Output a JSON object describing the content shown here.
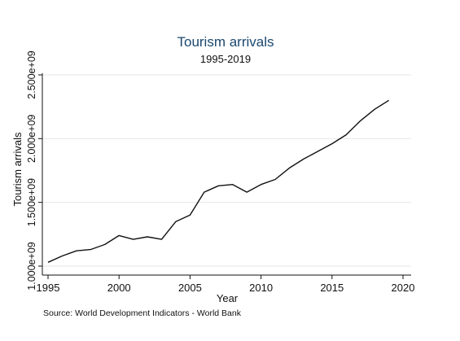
{
  "chart_data": {
    "type": "line",
    "title": "Tourism arrivals",
    "subtitle": "1995-2019",
    "xlabel": "Year",
    "ylabel": "Tourism arrivals",
    "source": "Source: World Development Indicators - World Bank",
    "xlim": [
      1995,
      2020
    ],
    "ylim": [
      1000000000,
      2500000000
    ],
    "x_ticks": [
      1995,
      2000,
      2005,
      2010,
      2015,
      2020
    ],
    "x_tick_labels": [
      "1995",
      "2000",
      "2005",
      "2010",
      "2015",
      "2020"
    ],
    "y_ticks": [
      1000000000,
      1500000000,
      2000000000,
      2500000000
    ],
    "y_tick_labels": [
      "1.000e+09",
      "1.500e+09",
      "2.000e+09",
      "2.500e+09"
    ],
    "grid": "horizontal",
    "colors": {
      "line": "#111111",
      "grid": "#e6e6e6",
      "title": "#1a476f"
    },
    "series": [
      {
        "x": [
          1995,
          1996,
          1997,
          1998,
          1999,
          2000,
          2001,
          2002,
          2003,
          2004,
          2005,
          2006,
          2007,
          2008,
          2009,
          2010,
          2011,
          2012,
          2013,
          2014,
          2015,
          2016,
          2017,
          2018,
          2019
        ],
        "values": [
          1030000000,
          1080000000,
          1120000000,
          1130000000,
          1170000000,
          1240000000,
          1210000000,
          1230000000,
          1210000000,
          1350000000,
          1400000000,
          1580000000,
          1630000000,
          1640000000,
          1580000000,
          1640000000,
          1680000000,
          1770000000,
          1840000000,
          1900000000,
          1960000000,
          2030000000,
          2140000000,
          2230000000,
          2300000000
        ]
      }
    ]
  }
}
